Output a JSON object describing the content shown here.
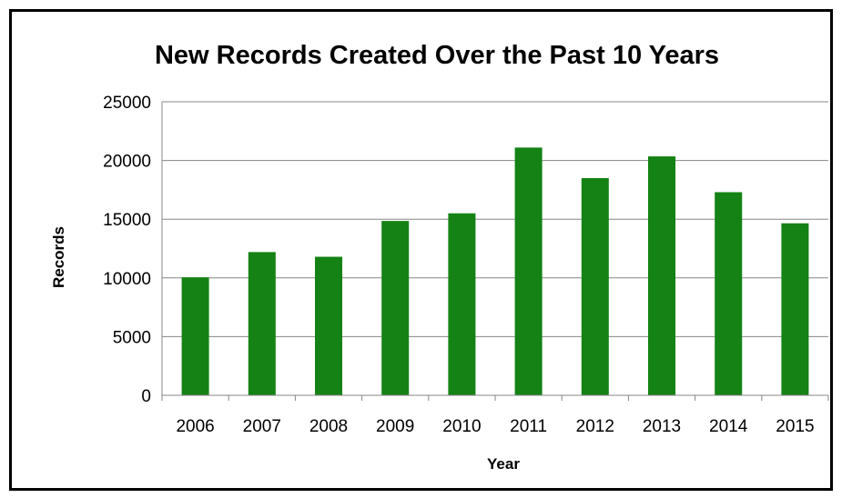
{
  "chart_data": {
    "type": "bar",
    "title": "New Records Created Over the Past 10 Years",
    "xlabel": "Year",
    "ylabel": "Records",
    "categories": [
      "2006",
      "2007",
      "2008",
      "2009",
      "2010",
      "2011",
      "2012",
      "2013",
      "2014",
      "2015"
    ],
    "series": [
      {
        "values": [
          10050,
          12200,
          11800,
          14850,
          15500,
          21100,
          18500,
          20350,
          17300,
          14650
        ]
      }
    ],
    "ylim": [
      0,
      25000
    ],
    "yticks": [
      "0",
      "5000",
      "10000",
      "15000",
      "20000",
      "25000"
    ],
    "grid": true,
    "bar_color": "#148214",
    "legend": "none"
  }
}
